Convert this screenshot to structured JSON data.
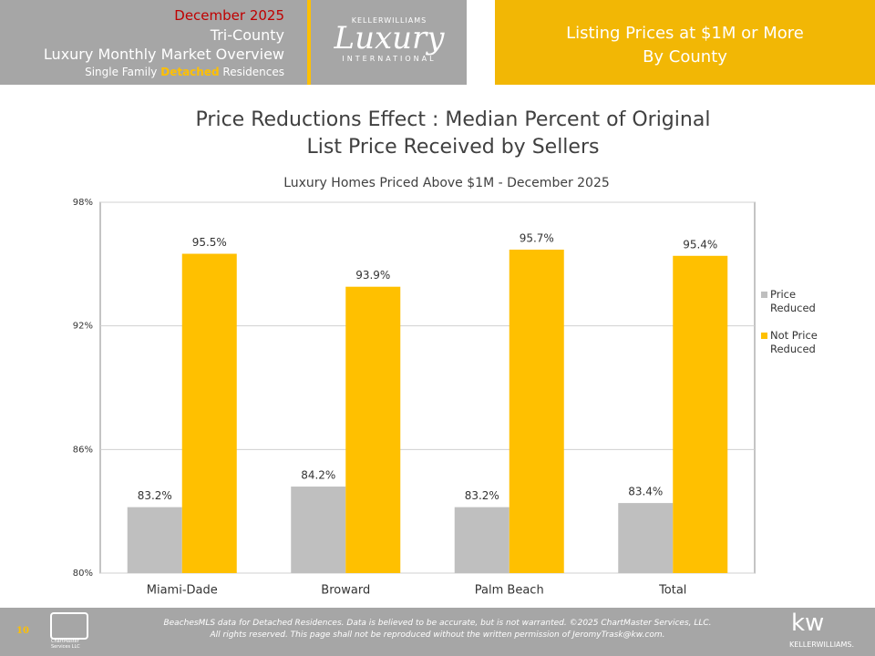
{
  "header": {
    "date": "December 2025",
    "region": "Tri-County",
    "report": "Luxury Monthly Market Overview",
    "segment": [
      "Single Family",
      "Detached",
      "Residences"
    ],
    "logo": {
      "top": "KELLERWILLIAMS",
      "main": "Luxury",
      "bottom": "INTERNATIONAL"
    },
    "topic": [
      "Listing Prices at $1M or More",
      "By County"
    ]
  },
  "chart_data": {
    "type": "bar",
    "title": [
      "Price Reductions Effect : Median Percent of Original",
      "List Price Received by Sellers"
    ],
    "subtitle": "Luxury Homes Priced Above $1M - December 2025",
    "categories": [
      "Miami-Dade",
      "Broward",
      "Palm Beach",
      "Total"
    ],
    "series": [
      {
        "name": "Price Reduced",
        "color": "#bfbfbf",
        "values": [
          83.2,
          84.2,
          83.2,
          83.4
        ],
        "value_labels": [
          "83.2%",
          "84.2%",
          "83.2%",
          "83.4%"
        ]
      },
      {
        "name": "Not Price Reduced",
        "color": "#ffc000",
        "values": [
          95.5,
          93.9,
          95.7,
          95.4
        ],
        "value_labels": [
          "95.5%",
          "93.9%",
          "95.7%",
          "95.4%"
        ]
      }
    ],
    "ylim": [
      80,
      98
    ],
    "yticks": [
      {
        "value": 80,
        "label": "80%"
      },
      {
        "value": 86,
        "label": "86%"
      },
      {
        "value": 92,
        "label": "92%"
      },
      {
        "value": 98,
        "label": "98%"
      }
    ],
    "grid": true,
    "legend": "right"
  },
  "footer": {
    "page": "10",
    "logo": [
      "ChartMaster",
      "Services LLC"
    ],
    "notice": [
      "BeachesMLS data for Detached Residences.  Data is believed to be accurate, but is not warranted.  ©2025 ChartMaster Services, LLC.",
      "All rights reserved. This page shall not be reproduced without the written permission of JeromyTrask@kw.com."
    ],
    "brand": [
      "kw",
      "KELLERWILLIAMS."
    ]
  }
}
